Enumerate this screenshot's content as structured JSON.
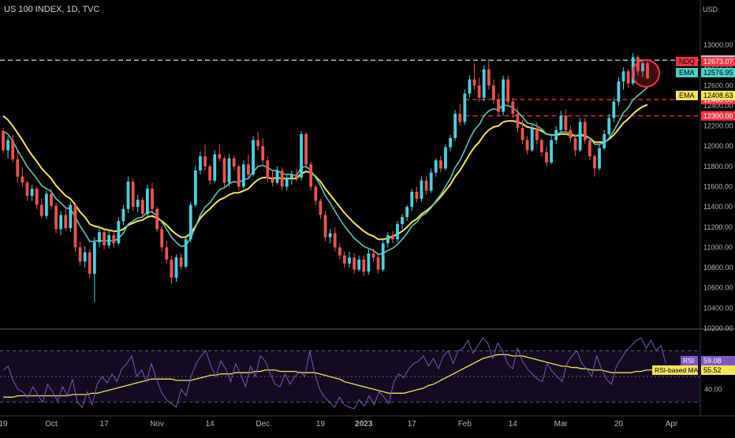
{
  "header": {
    "title": "US 100 INDEX, 1D, TVC"
  },
  "chart_data": {
    "type": "candlestick",
    "currency_label": "USD",
    "price_axis": {
      "ylim": [
        10200,
        13250
      ],
      "ticks": [
        10200,
        10400,
        10600,
        10800,
        11000,
        11200,
        11400,
        11600,
        11800,
        12000,
        12200,
        12400,
        12600,
        12800,
        13000
      ],
      "tick_labels": [
        "10200.00",
        "10400.00",
        "10600.00",
        "10800.00",
        "11000.00",
        "11200.00",
        "11400.00",
        "11600.00",
        "11800.00",
        "12000.00",
        "12200.00",
        "12400.00",
        "12600.00",
        "12800.00",
        "13000.00"
      ]
    },
    "x_axis": {
      "tick_labels": [
        "19",
        "Oct",
        "17",
        "Nov",
        "14",
        "Dec",
        "19",
        "2023",
        "17",
        "Feb",
        "14",
        "Mar",
        "20",
        "Apr"
      ],
      "tick_index": [
        0,
        10,
        21,
        32,
        43,
        54,
        66,
        75,
        85,
        96,
        106,
        116,
        128,
        139
      ]
    },
    "horizontal_levels": [
      {
        "value": 12850,
        "label": "12850.00",
        "color": "#b2ebf2",
        "style": "dashed"
      },
      {
        "value": 12460,
        "label": "12460.00",
        "color": "#f23645",
        "style": "dashed"
      },
      {
        "value": 12300,
        "label": "12300.00",
        "color": "#f23645",
        "style": "dashed"
      }
    ],
    "price_tags": [
      {
        "name": "NDQ",
        "value": 12673.07,
        "label": "12673.07",
        "color": "#f23645"
      },
      {
        "name": "EMA",
        "value": 12576.95,
        "label": "12576.95",
        "color": "#4dd0c8"
      },
      {
        "name": "EMA",
        "value": 12408.63,
        "label": "12408.63",
        "color": "#f5e35a"
      }
    ],
    "colors": {
      "up": "#4dd0e1",
      "down": "#ef5350",
      "ema_fast": "#5ec7b6",
      "ema_slow": "#f5e35a",
      "rsi": "#7e57c2",
      "rsi_ma": "#f5e35a",
      "highlight": "#f23645"
    },
    "candles_ohlc": [
      [
        12150,
        12180,
        11930,
        11960
      ],
      [
        11960,
        12100,
        11880,
        12060
      ],
      [
        12060,
        12110,
        11840,
        11870
      ],
      [
        11870,
        11960,
        11640,
        11700
      ],
      [
        11700,
        11790,
        11600,
        11640
      ],
      [
        11640,
        11660,
        11460,
        11510
      ],
      [
        11510,
        11620,
        11460,
        11580
      ],
      [
        11580,
        11600,
        11380,
        11420
      ],
      [
        11420,
        11480,
        11290,
        11310
      ],
      [
        11310,
        11560,
        11280,
        11530
      ],
      [
        11530,
        11590,
        11380,
        11410
      ],
      [
        11410,
        11440,
        11140,
        11180
      ],
      [
        11180,
        11360,
        11120,
        11320
      ],
      [
        11320,
        11400,
        11160,
        11190
      ],
      [
        11190,
        11450,
        11150,
        11420
      ],
      [
        11420,
        11440,
        10960,
        11000
      ],
      [
        11000,
        11060,
        10820,
        10860
      ],
      [
        10860,
        11010,
        10800,
        10950
      ],
      [
        10950,
        10980,
        10700,
        10740
      ],
      [
        10740,
        11100,
        10460,
        11050
      ],
      [
        11050,
        11200,
        11000,
        11150
      ],
      [
        11150,
        11170,
        10980,
        11020
      ],
      [
        11020,
        11160,
        10990,
        11120
      ],
      [
        11120,
        11160,
        11000,
        11040
      ],
      [
        11040,
        11300,
        11020,
        11260
      ],
      [
        11260,
        11420,
        11220,
        11380
      ],
      [
        11380,
        11700,
        11340,
        11650
      ],
      [
        11650,
        11680,
        11360,
        11400
      ],
      [
        11400,
        11520,
        11350,
        11470
      ],
      [
        11470,
        11500,
        11300,
        11330
      ],
      [
        11330,
        11620,
        11290,
        11580
      ],
      [
        11580,
        11640,
        11350,
        11380
      ],
      [
        11380,
        11400,
        11150,
        11180
      ],
      [
        11180,
        11210,
        10960,
        11000
      ],
      [
        11000,
        11060,
        10840,
        10880
      ],
      [
        10880,
        10920,
        10640,
        10700
      ],
      [
        10700,
        10930,
        10660,
        10900
      ],
      [
        10900,
        10940,
        10780,
        10810
      ],
      [
        10810,
        11120,
        10790,
        11080
      ],
      [
        11080,
        11450,
        11050,
        11420
      ],
      [
        11420,
        11810,
        11400,
        11760
      ],
      [
        11760,
        11950,
        11720,
        11900
      ],
      [
        11900,
        12020,
        11760,
        11800
      ],
      [
        11800,
        11820,
        11620,
        11660
      ],
      [
        11660,
        11960,
        11640,
        11920
      ],
      [
        11920,
        12020,
        11850,
        11880
      ],
      [
        11880,
        11900,
        11600,
        11640
      ],
      [
        11640,
        11920,
        11600,
        11880
      ],
      [
        11880,
        11910,
        11760,
        11800
      ],
      [
        11800,
        11820,
        11560,
        11600
      ],
      [
        11600,
        11860,
        11580,
        11820
      ],
      [
        11820,
        11920,
        11680,
        11720
      ],
      [
        11720,
        12100,
        11700,
        12060
      ],
      [
        12060,
        12140,
        11960,
        12000
      ],
      [
        12000,
        12080,
        11820,
        11860
      ],
      [
        11860,
        11900,
        11640,
        11680
      ],
      [
        11680,
        11760,
        11600,
        11640
      ],
      [
        11640,
        11800,
        11620,
        11760
      ],
      [
        11760,
        11790,
        11560,
        11600
      ],
      [
        11600,
        11720,
        11560,
        11680
      ],
      [
        11680,
        11760,
        11620,
        11720
      ],
      [
        11720,
        11780,
        11650,
        11690
      ],
      [
        11690,
        12150,
        11660,
        12120
      ],
      [
        12120,
        12140,
        11780,
        11820
      ],
      [
        11820,
        11840,
        11560,
        11600
      ],
      [
        11600,
        11620,
        11420,
        11460
      ],
      [
        11460,
        11480,
        11280,
        11320
      ],
      [
        11320,
        11360,
        11060,
        11100
      ],
      [
        11100,
        11180,
        11040,
        11140
      ],
      [
        11140,
        11200,
        10960,
        11000
      ],
      [
        11000,
        11040,
        10880,
        10920
      ],
      [
        10920,
        10960,
        10800,
        10840
      ],
      [
        10840,
        10960,
        10800,
        10900
      ],
      [
        10900,
        10940,
        10740,
        10780
      ],
      [
        10780,
        10920,
        10760,
        10880
      ],
      [
        10880,
        10920,
        10720,
        10760
      ],
      [
        10760,
        10980,
        10730,
        10940
      ],
      [
        10940,
        10990,
        10860,
        10900
      ],
      [
        10900,
        10930,
        10740,
        10780
      ],
      [
        10780,
        11080,
        10760,
        11040
      ],
      [
        11040,
        11150,
        11000,
        11120
      ],
      [
        11120,
        11160,
        11040,
        11080
      ],
      [
        11080,
        11260,
        11050,
        11230
      ],
      [
        11230,
        11330,
        11180,
        11300
      ],
      [
        11300,
        11420,
        11260,
        11400
      ],
      [
        11400,
        11580,
        11360,
        11550
      ],
      [
        11550,
        11600,
        11440,
        11480
      ],
      [
        11480,
        11700,
        11450,
        11660
      ],
      [
        11660,
        11700,
        11520,
        11560
      ],
      [
        11560,
        11780,
        11540,
        11740
      ],
      [
        11740,
        11880,
        11700,
        11860
      ],
      [
        11860,
        11900,
        11740,
        11780
      ],
      [
        11780,
        12020,
        11760,
        11990
      ],
      [
        11990,
        12110,
        11950,
        12080
      ],
      [
        12080,
        12360,
        12050,
        12320
      ],
      [
        12320,
        12420,
        12200,
        12240
      ],
      [
        12240,
        12560,
        12210,
        12520
      ],
      [
        12520,
        12700,
        12480,
        12660
      ],
      [
        12660,
        12820,
        12560,
        12600
      ],
      [
        12600,
        12680,
        12440,
        12480
      ],
      [
        12480,
        12800,
        12440,
        12760
      ],
      [
        12760,
        12860,
        12560,
        12600
      ],
      [
        12600,
        12660,
        12420,
        12460
      ],
      [
        12460,
        12520,
        12300,
        12340
      ],
      [
        12340,
        12700,
        12300,
        12660
      ],
      [
        12660,
        12700,
        12400,
        12440
      ],
      [
        12440,
        12480,
        12280,
        12320
      ],
      [
        12320,
        12380,
        12140,
        12180
      ],
      [
        12180,
        12260,
        12020,
        12060
      ],
      [
        12060,
        12100,
        11920,
        11960
      ],
      [
        11960,
        12220,
        11940,
        12180
      ],
      [
        12180,
        12240,
        12020,
        12060
      ],
      [
        12060,
        12080,
        11900,
        11940
      ],
      [
        11940,
        12000,
        11800,
        11840
      ],
      [
        11840,
        12100,
        11820,
        12060
      ],
      [
        12060,
        12200,
        12020,
        12160
      ],
      [
        12160,
        12350,
        12120,
        12300
      ],
      [
        12300,
        12360,
        12120,
        12160
      ],
      [
        12160,
        12200,
        12040,
        12080
      ],
      [
        12080,
        12120,
        11900,
        11960
      ],
      [
        11960,
        12280,
        11940,
        12240
      ],
      [
        12240,
        12280,
        12020,
        12060
      ],
      [
        12060,
        12080,
        11860,
        11900
      ],
      [
        11900,
        11920,
        11700,
        11780
      ],
      [
        11780,
        12020,
        11760,
        11980
      ],
      [
        11980,
        12160,
        11960,
        12120
      ],
      [
        12120,
        12320,
        12100,
        12280
      ],
      [
        12280,
        12480,
        12240,
        12440
      ],
      [
        12440,
        12680,
        12400,
        12640
      ],
      [
        12640,
        12780,
        12560,
        12740
      ],
      [
        12740,
        12760,
        12580,
        12620
      ],
      [
        12620,
        12920,
        12600,
        12880
      ],
      [
        12880,
        12900,
        12700,
        12740
      ],
      [
        12740,
        12860,
        12680,
        12820
      ],
      [
        12820,
        12860,
        12660,
        12673
      ]
    ],
    "ema_fast": [
      12150,
      12120,
      12050,
      11960,
      11880,
      11800,
      11740,
      11680,
      11610,
      11580,
      11550,
      11480,
      11440,
      11390,
      11380,
      11300,
      11210,
      11140,
      11060,
      11060,
      11070,
      11060,
      11070,
      11060,
      11090,
      11140,
      11230,
      11260,
      11290,
      11300,
      11350,
      11350,
      11310,
      11250,
      11180,
      11100,
      11050,
      11010,
      11020,
      11090,
      11200,
      11320,
      11400,
      11440,
      11510,
      11570,
      11590,
      11630,
      11650,
      11640,
      11670,
      11680,
      11750,
      11800,
      11810,
      11790,
      11760,
      11760,
      11730,
      11720,
      11720,
      11710,
      11790,
      11800,
      11760,
      11690,
      11610,
      11510,
      11440,
      11360,
      11280,
      11210,
      11150,
      11090,
      11050,
      11010,
      10990,
      10970,
      10930,
      10940,
      10970,
      10990,
      11030,
      11080,
      11140,
      11210,
      11250,
      11310,
      11340,
      11390,
      11460,
      11520,
      11600,
      11680,
      11790,
      11860,
      11960,
      12070,
      12160,
      12210,
      12300,
      12350,
      12370,
      12360,
      12410,
      12400,
      12380,
      12340,
      12290,
      12230,
      12220,
      12200,
      12170,
      12120,
      12110,
      12110,
      12140,
      12140,
      12130,
      12100,
      12120,
      12110,
      12080,
      12020,
      12020,
      12030,
      12080,
      12150,
      12240,
      12330,
      12380,
      12460,
      12500,
      12540,
      12580
    ],
    "ema_slow": [
      12300,
      12260,
      12200,
      12130,
      12060,
      11980,
      11910,
      11850,
      11780,
      11730,
      11680,
      11610,
      11560,
      11510,
      11480,
      11420,
      11350,
      11300,
      11230,
      11210,
      11200,
      11180,
      11170,
      11160,
      11160,
      11180,
      11220,
      11240,
      11260,
      11270,
      11300,
      11310,
      11290,
      11260,
      11220,
      11170,
      11130,
      11100,
      11100,
      11140,
      11210,
      11290,
      11340,
      11380,
      11430,
      11470,
      11490,
      11520,
      11540,
      11540,
      11560,
      11580,
      11630,
      11670,
      11690,
      11690,
      11680,
      11690,
      11680,
      11680,
      11680,
      11680,
      11730,
      11750,
      11740,
      11700,
      11650,
      11580,
      11520,
      11460,
      11400,
      11340,
      11290,
      11240,
      11200,
      11160,
      11130,
      11110,
      11080,
      11080,
      11090,
      11110,
      11130,
      11160,
      11200,
      11250,
      11280,
      11330,
      11360,
      11400,
      11450,
      11500,
      11560,
      11620,
      11700,
      11760,
      11840,
      11920,
      11990,
      12040,
      12110,
      12160,
      12190,
      12200,
      12240,
      12250,
      12250,
      12240,
      12220,
      12190,
      12180,
      12170,
      12150,
      12120,
      12110,
      12110,
      12120,
      12120,
      12110,
      12100,
      12110,
      12100,
      12080,
      12040,
      12040,
      12040,
      12070,
      12110,
      12170,
      12230,
      12270,
      12320,
      12360,
      12390,
      12410
    ],
    "rsi_panel": {
      "yrange": [
        20,
        85
      ],
      "levels": [
        70,
        50,
        30
      ],
      "tick_label": "40.00",
      "tick_value": 40,
      "tags": [
        {
          "name": "RSI",
          "value": 59.08,
          "label": "59.08",
          "color": "#7e57c2"
        },
        {
          "name": "RSI-based MA",
          "value": 55.52,
          "label": "55.52",
          "color": "#f5e35a"
        }
      ],
      "rsi": [
        55,
        58,
        47,
        40,
        38,
        34,
        42,
        36,
        30,
        44,
        38,
        31,
        42,
        35,
        48,
        30,
        26,
        38,
        28,
        44,
        50,
        45,
        52,
        46,
        56,
        60,
        66,
        50,
        55,
        46,
        60,
        48,
        38,
        32,
        29,
        26,
        40,
        35,
        50,
        60,
        66,
        70,
        58,
        50,
        62,
        56,
        46,
        60,
        52,
        42,
        58,
        50,
        66,
        62,
        52,
        44,
        42,
        52,
        44,
        50,
        54,
        50,
        70,
        52,
        40,
        34,
        30,
        26,
        34,
        28,
        26,
        25,
        32,
        27,
        35,
        28,
        38,
        34,
        29,
        46,
        52,
        49,
        56,
        60,
        62,
        66,
        58,
        64,
        56,
        66,
        70,
        60,
        70,
        72,
        78,
        68,
        74,
        80,
        76,
        64,
        76,
        70,
        60,
        56,
        72,
        62,
        56,
        52,
        48,
        46,
        60,
        54,
        50,
        46,
        60,
        66,
        70,
        60,
        56,
        50,
        66,
        56,
        48,
        44,
        58,
        64,
        70,
        74,
        78,
        80,
        72,
        78,
        70,
        74,
        60
      ],
      "rsi_ma": [
        34,
        34,
        34,
        35,
        35,
        35,
        35,
        35,
        35,
        35,
        35,
        35,
        35,
        35,
        36,
        36,
        36,
        36,
        37,
        37,
        38,
        39,
        40,
        41,
        42,
        43,
        44,
        45,
        46,
        47,
        48,
        48,
        48,
        48,
        48,
        47,
        47,
        47,
        47,
        48,
        49,
        50,
        51,
        51,
        52,
        52,
        52,
        53,
        53,
        53,
        53,
        54,
        54,
        55,
        55,
        55,
        54,
        54,
        54,
        54,
        53,
        53,
        53,
        53,
        52,
        51,
        50,
        49,
        48,
        46,
        45,
        44,
        43,
        42,
        41,
        40,
        39,
        38,
        37,
        37,
        37,
        37,
        38,
        39,
        40,
        41,
        43,
        44,
        46,
        48,
        50,
        52,
        54,
        56,
        58,
        60,
        62,
        64,
        65,
        66,
        67,
        67,
        67,
        66,
        66,
        66,
        65,
        64,
        63,
        62,
        61,
        60,
        59,
        58,
        58,
        57,
        57,
        56,
        56,
        55,
        55,
        55,
        54,
        53,
        53,
        53,
        53,
        53,
        54,
        54,
        55,
        55,
        55,
        55,
        56
      ]
    }
  }
}
